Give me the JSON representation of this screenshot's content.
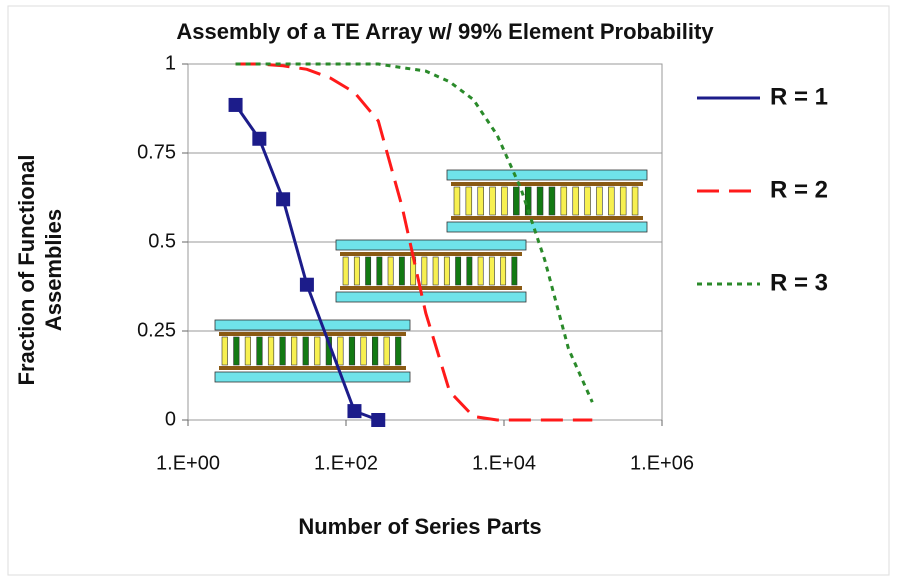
{
  "chart_data": {
    "type": "line",
    "title": "Assembly of a TE Array w/ 99% Element Probability",
    "x_label": "Number of Series Parts",
    "y_label": "Fraction of Functional Assemblies",
    "log_x": true,
    "grid": true,
    "legend": "right",
    "xlim": [
      1,
      1000000
    ],
    "xticks": [
      {
        "value": 1,
        "label": "1.E+00"
      },
      {
        "value": 100,
        "label": "1.E+02"
      },
      {
        "value": 10000,
        "label": "1.E+04"
      },
      {
        "value": 1000000,
        "label": "1.E+06"
      }
    ],
    "ylim": [
      0,
      1
    ],
    "yticks": [
      0,
      0.25,
      0.5,
      0.75,
      1
    ],
    "series": [
      {
        "name": "R = 1",
        "color": "#1c1c8a",
        "dash": "solid",
        "markers": true,
        "x": [
          4,
          8,
          16,
          32,
          128,
          256
        ],
        "values": [
          0.885,
          0.79,
          0.62,
          0.38,
          0.025,
          0.0
        ]
      },
      {
        "name": "R = 2",
        "color": "#ff1a1a",
        "dash": "dashed",
        "markers": false,
        "x": [
          4,
          8,
          16,
          32,
          64,
          128,
          256,
          512,
          1024,
          2048,
          4096,
          8192,
          16384,
          32768,
          65536,
          131072
        ],
        "values": [
          1,
          1,
          0.995,
          0.985,
          0.96,
          0.92,
          0.84,
          0.6,
          0.3,
          0.08,
          0.01,
          0,
          0,
          0,
          0,
          0
        ]
      },
      {
        "name": "R = 3",
        "color": "#2a8a2a",
        "dash": "dotted",
        "markers": false,
        "x": [
          4,
          8,
          16,
          32,
          64,
          128,
          256,
          512,
          1024,
          2048,
          4096,
          8192,
          16384,
          32768,
          65536,
          131072
        ],
        "values": [
          1,
          1,
          1,
          1,
          1,
          1,
          1,
          0.99,
          0.98,
          0.95,
          0.9,
          0.8,
          0.65,
          0.45,
          0.2,
          0.05
        ]
      }
    ]
  }
}
